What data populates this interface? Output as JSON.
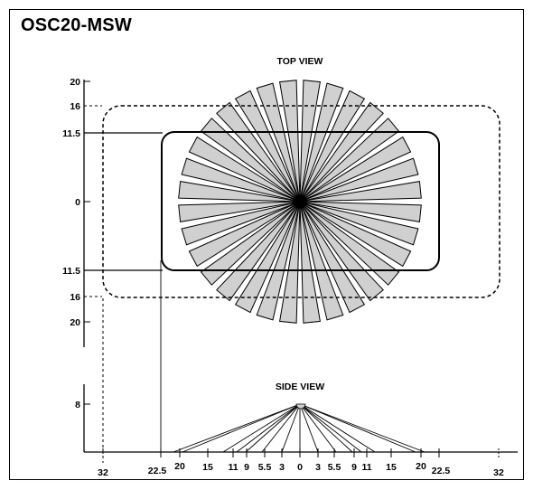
{
  "title": "OSC20-MSW",
  "top_view": {
    "label": "TOP VIEW",
    "axis_labels": [
      "20",
      "16",
      "11.5",
      "0",
      "11.5",
      "16",
      "20"
    ],
    "petal_count": 32
  },
  "side_view": {
    "label": "SIDE VIEW",
    "height_label": "8",
    "bottom_labels": [
      "32",
      "22.5",
      "20",
      "15",
      "11",
      "9",
      "5.5",
      "3",
      "0",
      "3",
      "5.5",
      "9",
      "11",
      "15",
      "20",
      "22.5",
      "32"
    ]
  },
  "colors": {
    "petal_fill": "#d0d0d0",
    "line": "#000000"
  }
}
